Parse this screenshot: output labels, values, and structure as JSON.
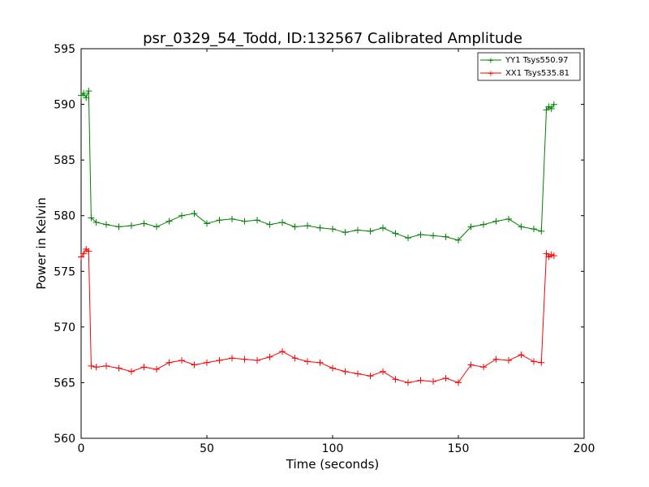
{
  "chart_data": {
    "type": "line",
    "title": "psr_0329_54_Todd, ID:132567 Calibrated Amplitude",
    "xlabel": "Time (seconds)",
    "ylabel": "Power in Kelvin",
    "xlim": [
      0,
      200
    ],
    "ylim": [
      560,
      595
    ],
    "xticks": [
      0,
      50,
      100,
      150,
      200
    ],
    "yticks": [
      560,
      565,
      570,
      575,
      580,
      585,
      590,
      595
    ],
    "grid": false,
    "legend_position": "top-right",
    "markers": "plus",
    "series": [
      {
        "name": "YY1 Tsys550.97",
        "color": "#008000",
        "x": [
          0,
          1,
          2,
          3,
          4,
          6,
          10,
          15,
          20,
          25,
          30,
          35,
          40,
          45,
          50,
          55,
          60,
          65,
          70,
          75,
          80,
          85,
          90,
          95,
          100,
          105,
          110,
          115,
          120,
          125,
          130,
          135,
          140,
          145,
          150,
          155,
          160,
          165,
          170,
          175,
          180,
          183,
          185,
          186,
          187,
          188
        ],
        "y": [
          590.8,
          591.0,
          590.6,
          591.2,
          579.8,
          579.4,
          579.2,
          579.0,
          579.1,
          579.3,
          579.0,
          579.5,
          580.0,
          580.2,
          579.3,
          579.6,
          579.7,
          579.5,
          579.6,
          579.2,
          579.4,
          579.0,
          579.1,
          578.9,
          578.8,
          578.5,
          578.7,
          578.6,
          578.9,
          578.4,
          578.0,
          578.3,
          578.2,
          578.1,
          577.8,
          579.0,
          579.2,
          579.5,
          579.7,
          579.0,
          578.8,
          578.6,
          589.5,
          589.8,
          589.6,
          590.0
        ]
      },
      {
        "name": "XX1 Tsys535.81",
        "color": "#ff0000",
        "x": [
          0,
          1,
          2,
          3,
          4,
          6,
          10,
          15,
          20,
          25,
          30,
          35,
          40,
          45,
          50,
          55,
          60,
          65,
          70,
          75,
          80,
          85,
          90,
          95,
          100,
          105,
          110,
          115,
          120,
          125,
          130,
          135,
          140,
          145,
          150,
          155,
          160,
          165,
          170,
          175,
          180,
          183,
          185,
          186,
          187,
          188
        ],
        "y": [
          576.3,
          576.6,
          577.0,
          576.8,
          566.5,
          566.4,
          566.5,
          566.3,
          566.0,
          566.4,
          566.2,
          566.8,
          567.0,
          566.6,
          566.8,
          567.0,
          567.2,
          567.1,
          567.0,
          567.3,
          567.8,
          567.2,
          566.9,
          566.8,
          566.3,
          566.0,
          565.8,
          565.6,
          566.0,
          565.3,
          565.0,
          565.2,
          565.1,
          565.4,
          565.0,
          566.6,
          566.4,
          567.1,
          567.0,
          567.5,
          566.9,
          566.8,
          576.6,
          576.3,
          576.5,
          576.4
        ]
      }
    ]
  }
}
